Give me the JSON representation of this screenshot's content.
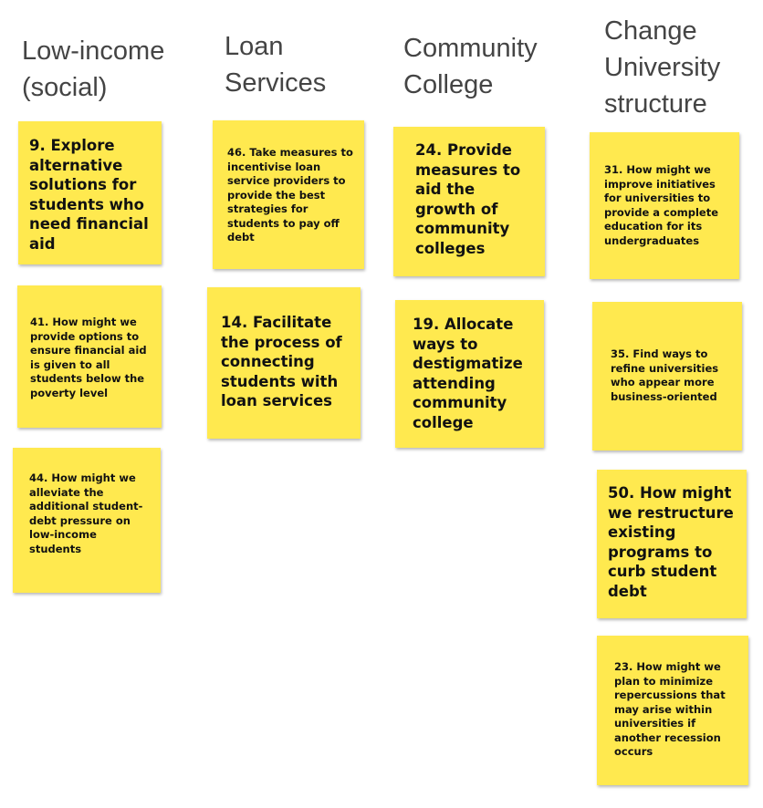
{
  "columns": [
    {
      "heading": "Low-income\n(social)",
      "notes": [
        "9. Explore alternative solutions for students who need financial aid",
        "41. How might we provide options to ensure financial aid is given to all students below the poverty level",
        "44. How might we alleviate the additional student-debt pressure on low-income students"
      ]
    },
    {
      "heading": "Loan\nServices",
      "notes": [
        "46. Take measures to incentivise loan service providers to provide the best strategies for students to pay off debt",
        "14. Facilitate the process of connecting students with loan services"
      ]
    },
    {
      "heading": "Community\nCollege",
      "notes": [
        "24. Provide measures to aid the growth of community colleges",
        "19. Allocate ways to destigmatize attending community college"
      ]
    },
    {
      "heading": "Change\nUniversity\nstructure",
      "notes": [
        "31. How might we improve initiatives for universities to provide a complete education for its undergraduates",
        "35. Find ways to refine universities who appear more business-oriented",
        "50. How might we restructure existing programs to curb student debt",
        "23. How might we plan to minimize repercussions that may arise within universities if another recession occurs"
      ]
    }
  ],
  "note_color": "#FFE94F",
  "heading_color": "#444444"
}
